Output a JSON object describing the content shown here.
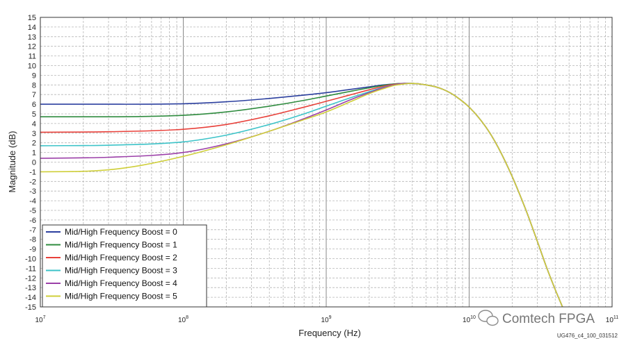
{
  "chart_data": {
    "type": "line",
    "xlabel": "Frequency (Hz)",
    "ylabel": "Magnitude (dB)",
    "xscale": "log",
    "xlim": [
      10000000.0,
      100000000000.0
    ],
    "ylim": [
      -15,
      15
    ],
    "x_ticks": [
      {
        "base": "10",
        "exp": "7",
        "value": 10000000.0
      },
      {
        "base": "10",
        "exp": "8",
        "value": 100000000.0
      },
      {
        "base": "10",
        "exp": "9",
        "value": 1000000000.0
      },
      {
        "base": "10",
        "exp": "10",
        "value": 10000000000.0
      },
      {
        "base": "10",
        "exp": "11",
        "value": 100000000000.0
      }
    ],
    "y_ticks": [
      "15",
      "14",
      "13",
      "12",
      "11",
      "10",
      "9",
      "8",
      "7",
      "6",
      "5",
      "4",
      "3",
      "2",
      "1",
      "0",
      "-1",
      "-2",
      "-3",
      "-4",
      "-5",
      "-6",
      "-7",
      "-8",
      "-9",
      "-10",
      "-11",
      "-12",
      "-13",
      "-14",
      "-15"
    ],
    "grid": true,
    "legend_position": "bottom-left",
    "series": [
      {
        "name": "Mid/High Frequency Boost = 0",
        "color": "#2b3f9e",
        "points": [
          [
            10000000.0,
            6.0
          ],
          [
            30000000.0,
            6.0
          ],
          [
            100000000.0,
            6.05
          ],
          [
            200000000.0,
            6.25
          ],
          [
            400000000.0,
            6.6
          ],
          [
            700000000.0,
            6.95
          ],
          [
            1000000000.0,
            7.2
          ],
          [
            1500000000.0,
            7.55
          ],
          [
            2000000000.0,
            7.8
          ],
          [
            2500000000.0,
            8.0
          ],
          [
            3000000000.0,
            8.1
          ],
          [
            3500000000.0,
            8.15
          ],
          [
            4000000000.0,
            8.15
          ],
          [
            5000000000.0,
            8.0
          ],
          [
            6000000000.0,
            7.75
          ],
          [
            7000000000.0,
            7.35
          ],
          [
            8000000000.0,
            6.85
          ],
          [
            10000000000.0,
            5.7
          ],
          [
            13000000000.0,
            3.7
          ],
          [
            16000000000.0,
            1.5
          ],
          [
            20000000000.0,
            -1.5
          ],
          [
            25000000000.0,
            -5.0
          ],
          [
            30000000000.0,
            -8.2
          ],
          [
            35000000000.0,
            -11.0
          ],
          [
            40000000000.0,
            -13.2
          ],
          [
            45000000000.0,
            -15.0
          ]
        ]
      },
      {
        "name": "Mid/High Frequency Boost = 1",
        "color": "#2e8b3e",
        "points": [
          [
            10000000.0,
            4.7
          ],
          [
            30000000.0,
            4.7
          ],
          [
            100000000.0,
            4.85
          ],
          [
            200000000.0,
            5.2
          ],
          [
            400000000.0,
            5.8
          ],
          [
            700000000.0,
            6.4
          ],
          [
            1000000000.0,
            6.85
          ],
          [
            1500000000.0,
            7.35
          ],
          [
            2000000000.0,
            7.7
          ],
          [
            2500000000.0,
            7.95
          ],
          [
            3000000000.0,
            8.1
          ],
          [
            3500000000.0,
            8.15
          ],
          [
            4000000000.0,
            8.15
          ],
          [
            5000000000.0,
            8.0
          ],
          [
            6000000000.0,
            7.75
          ],
          [
            7000000000.0,
            7.35
          ],
          [
            8000000000.0,
            6.85
          ],
          [
            10000000000.0,
            5.7
          ],
          [
            13000000000.0,
            3.7
          ],
          [
            16000000000.0,
            1.5
          ],
          [
            20000000000.0,
            -1.5
          ],
          [
            25000000000.0,
            -5.0
          ],
          [
            30000000000.0,
            -8.2
          ],
          [
            35000000000.0,
            -11.0
          ],
          [
            40000000000.0,
            -13.2
          ],
          [
            45000000000.0,
            -15.0
          ]
        ]
      },
      {
        "name": "Mid/High Frequency Boost = 2",
        "color": "#e8403a",
        "points": [
          [
            10000000.0,
            3.1
          ],
          [
            30000000.0,
            3.15
          ],
          [
            100000000.0,
            3.4
          ],
          [
            200000000.0,
            3.9
          ],
          [
            400000000.0,
            4.8
          ],
          [
            700000000.0,
            5.7
          ],
          [
            1000000000.0,
            6.3
          ],
          [
            1500000000.0,
            7.0
          ],
          [
            2000000000.0,
            7.5
          ],
          [
            2500000000.0,
            7.85
          ],
          [
            3000000000.0,
            8.05
          ],
          [
            3500000000.0,
            8.15
          ],
          [
            4000000000.0,
            8.15
          ],
          [
            5000000000.0,
            8.0
          ],
          [
            6000000000.0,
            7.75
          ],
          [
            7000000000.0,
            7.35
          ],
          [
            8000000000.0,
            6.85
          ],
          [
            10000000000.0,
            5.7
          ],
          [
            13000000000.0,
            3.7
          ],
          [
            16000000000.0,
            1.5
          ],
          [
            20000000000.0,
            -1.5
          ],
          [
            25000000000.0,
            -5.0
          ],
          [
            30000000000.0,
            -8.2
          ],
          [
            35000000000.0,
            -11.0
          ],
          [
            40000000000.0,
            -13.2
          ],
          [
            45000000000.0,
            -15.0
          ]
        ]
      },
      {
        "name": "Mid/High Frequency Boost = 3",
        "color": "#3cc3c8",
        "points": [
          [
            10000000.0,
            1.7
          ],
          [
            30000000.0,
            1.75
          ],
          [
            100000000.0,
            2.1
          ],
          [
            200000000.0,
            2.8
          ],
          [
            400000000.0,
            3.9
          ],
          [
            700000000.0,
            5.0
          ],
          [
            1000000000.0,
            5.8
          ],
          [
            1500000000.0,
            6.7
          ],
          [
            2000000000.0,
            7.3
          ],
          [
            2500000000.0,
            7.75
          ],
          [
            3000000000.0,
            8.0
          ],
          [
            3500000000.0,
            8.15
          ],
          [
            4000000000.0,
            8.15
          ],
          [
            5000000000.0,
            8.0
          ],
          [
            6000000000.0,
            7.75
          ],
          [
            7000000000.0,
            7.35
          ],
          [
            8000000000.0,
            6.85
          ],
          [
            10000000000.0,
            5.7
          ],
          [
            13000000000.0,
            3.7
          ],
          [
            16000000000.0,
            1.5
          ],
          [
            20000000000.0,
            -1.5
          ],
          [
            25000000000.0,
            -5.0
          ],
          [
            30000000000.0,
            -8.2
          ],
          [
            35000000000.0,
            -11.0
          ],
          [
            40000000000.0,
            -13.2
          ],
          [
            45000000000.0,
            -15.0
          ]
        ]
      },
      {
        "name": "Mid/High Frequency Boost = 4",
        "color": "#9b3fa8",
        "points": [
          [
            10000000.0,
            0.4
          ],
          [
            30000000.0,
            0.5
          ],
          [
            100000000.0,
            1.0
          ],
          [
            200000000.0,
            1.9
          ],
          [
            400000000.0,
            3.2
          ],
          [
            700000000.0,
            4.5
          ],
          [
            1000000000.0,
            5.4
          ],
          [
            1500000000.0,
            6.5
          ],
          [
            2000000000.0,
            7.2
          ],
          [
            2500000000.0,
            7.7
          ],
          [
            3000000000.0,
            8.0
          ],
          [
            3500000000.0,
            8.15
          ],
          [
            4000000000.0,
            8.15
          ],
          [
            5000000000.0,
            8.0
          ],
          [
            6000000000.0,
            7.75
          ],
          [
            7000000000.0,
            7.35
          ],
          [
            8000000000.0,
            6.85
          ],
          [
            10000000000.0,
            5.7
          ],
          [
            13000000000.0,
            3.7
          ],
          [
            16000000000.0,
            1.5
          ],
          [
            20000000000.0,
            -1.5
          ],
          [
            25000000000.0,
            -5.0
          ],
          [
            30000000000.0,
            -8.2
          ],
          [
            35000000000.0,
            -11.0
          ],
          [
            40000000000.0,
            -13.2
          ],
          [
            45000000000.0,
            -15.0
          ]
        ]
      },
      {
        "name": "Mid/High Frequency Boost = 5",
        "color": "#cfcf3a",
        "points": [
          [
            10000000.0,
            -1.0
          ],
          [
            20000000.0,
            -0.95
          ],
          [
            30000000.0,
            -0.8
          ],
          [
            50000000.0,
            -0.35
          ],
          [
            100000000.0,
            0.6
          ],
          [
            200000000.0,
            1.8
          ],
          [
            400000000.0,
            3.2
          ],
          [
            700000000.0,
            4.4
          ],
          [
            1000000000.0,
            5.2
          ],
          [
            1500000000.0,
            6.3
          ],
          [
            2000000000.0,
            7.1
          ],
          [
            2500000000.0,
            7.6
          ],
          [
            3000000000.0,
            7.95
          ],
          [
            3500000000.0,
            8.1
          ],
          [
            4000000000.0,
            8.15
          ],
          [
            5000000000.0,
            8.0
          ],
          [
            6000000000.0,
            7.75
          ],
          [
            7000000000.0,
            7.35
          ],
          [
            8000000000.0,
            6.85
          ],
          [
            10000000000.0,
            5.7
          ],
          [
            13000000000.0,
            3.7
          ],
          [
            16000000000.0,
            1.5
          ],
          [
            20000000000.0,
            -1.5
          ],
          [
            25000000000.0,
            -5.0
          ],
          [
            30000000000.0,
            -8.2
          ],
          [
            35000000000.0,
            -11.0
          ],
          [
            40000000000.0,
            -13.2
          ],
          [
            45000000000.0,
            -15.0
          ]
        ]
      }
    ]
  },
  "figure_id": "UG476_c4_100_031512",
  "watermark": "Comtech FPGA"
}
